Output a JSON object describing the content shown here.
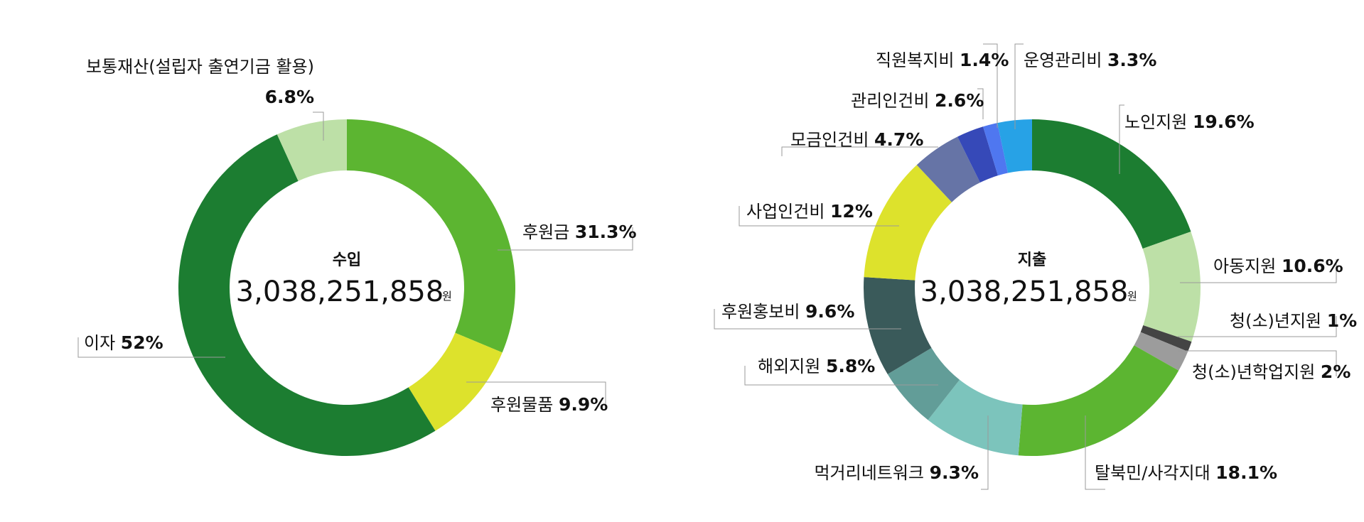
{
  "chart_data": [
    {
      "type": "pie",
      "center_title": "수입",
      "center_amount": "3,038,251,858",
      "center_unit": "원",
      "slices": [
        {
          "name": "후원금",
          "value": 31.3,
          "value_label": "31.3%",
          "color": "#5cb531"
        },
        {
          "name": "후원물품",
          "value": 9.9,
          "value_label": "9.9%",
          "color": "#dde22c"
        },
        {
          "name": "이자",
          "value": 52,
          "value_label": "52%",
          "color": "#1c7d31"
        },
        {
          "name": "보통재산(설립자 출연기금 활용)",
          "value": 6.8,
          "value_label": "6.8%",
          "color": "#bde0a7"
        }
      ]
    },
    {
      "type": "pie",
      "center_title": "지출",
      "center_amount": "3,038,251,858",
      "center_unit": "원",
      "slices": [
        {
          "name": "노인지원",
          "value": 19.6,
          "value_label": "19.6%",
          "color": "#1c7d31"
        },
        {
          "name": "아동지원",
          "value": 10.6,
          "value_label": "10.6%",
          "color": "#bde0a7"
        },
        {
          "name": "청(소)년지원",
          "value": 1,
          "value_label": "1%",
          "color": "#444444"
        },
        {
          "name": "청(소)년학업지원",
          "value": 2,
          "value_label": "2%",
          "color": "#9c9c9c"
        },
        {
          "name": "탈북민/사각지대",
          "value": 18.1,
          "value_label": "18.1%",
          "color": "#5cb531"
        },
        {
          "name": "먹거리네트워크",
          "value": 9.3,
          "value_label": "9.3%",
          "color": "#7cc4bc"
        },
        {
          "name": "해외지원",
          "value": 5.8,
          "value_label": "5.8%",
          "color": "#629d98"
        },
        {
          "name": "후원홍보비",
          "value": 9.6,
          "value_label": "9.6%",
          "color": "#3a5a5a"
        },
        {
          "name": "사업인건비",
          "value": 12,
          "value_label": "12%",
          "color": "#dde22c"
        },
        {
          "name": "모금인건비",
          "value": 4.7,
          "value_label": "4.7%",
          "color": "#6674a6"
        },
        {
          "name": "관리인건비",
          "value": 2.6,
          "value_label": "2.6%",
          "color": "#3649b8"
        },
        {
          "name": "직원복지비",
          "value": 1.4,
          "value_label": "1.4%",
          "color": "#4f77f0"
        },
        {
          "name": "운영관리비",
          "value": 3.3,
          "value_label": "3.3%",
          "color": "#27a2e6"
        }
      ]
    }
  ]
}
